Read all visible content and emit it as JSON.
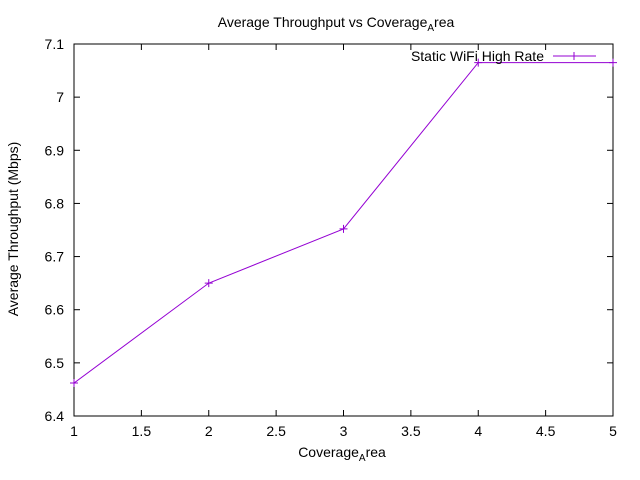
{
  "chart_data": {
    "type": "line",
    "title": "Average Throughput vs Coverage",
    "title_sub": "A",
    "title_tail": "rea",
    "xlabel": "Coverage",
    "xlabel_sub": "A",
    "xlabel_tail": "rea",
    "ylabel": "Average Throughput (Mbps)",
    "xlim": [
      1,
      5
    ],
    "ylim": [
      6.4,
      7.1
    ],
    "xticks": [
      "1",
      "1.5",
      "2",
      "2.5",
      "3",
      "3.5",
      "4",
      "4.5",
      "5"
    ],
    "yticks": [
      "6.4",
      "6.5",
      "6.6",
      "6.7",
      "6.8",
      "6.9",
      "7",
      "7.1"
    ],
    "grid": false,
    "legend_position": "top-right",
    "series": [
      {
        "name": "Static WiFi High Rate",
        "color": "#9400d3",
        "marker": "plus",
        "x": [
          1,
          2,
          3,
          4,
          5
        ],
        "y": [
          6.462,
          6.65,
          6.752,
          7.065,
          7.065
        ]
      }
    ]
  }
}
